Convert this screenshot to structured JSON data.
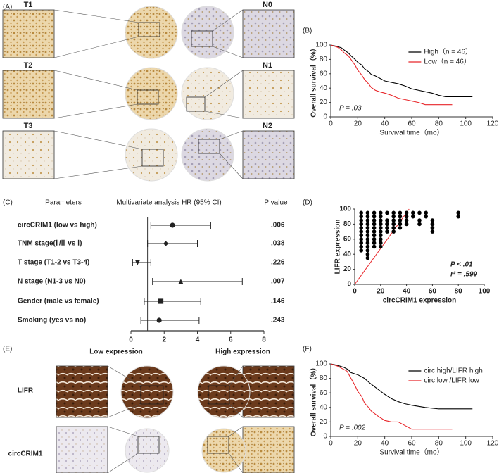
{
  "panel_labels": [
    "(A)",
    "(B)",
    "(C)",
    "(D)",
    "(E)",
    "(F)"
  ],
  "panel_a": {
    "labels": [
      "T1",
      "T2",
      "T3",
      "N0",
      "N1",
      "N2"
    ]
  },
  "panel_e": {
    "columns": [
      "Low expression",
      "High expression"
    ],
    "rows": [
      "LIFR",
      "circCRIM1"
    ]
  },
  "chart_data": [
    {
      "type": "km",
      "xlabel": "Survival time（mo）",
      "ylabel": "Overall survival（%）",
      "xlim": [
        0,
        120
      ],
      "xticks": [
        0,
        20,
        40,
        60,
        80,
        100,
        120
      ],
      "ylim": [
        0,
        100
      ],
      "yticks": [
        0,
        20,
        40,
        60,
        80,
        100
      ],
      "legend": "upper right",
      "annotation": "P = .03",
      "series": [
        {
          "name": "High（n = 46）",
          "color": "#000000",
          "x": [
            0,
            5,
            8,
            10,
            13,
            15,
            18,
            20,
            23,
            25,
            28,
            30,
            33,
            36,
            40,
            45,
            50,
            55,
            60,
            65,
            70,
            75,
            80,
            85,
            105
          ],
          "values": [
            100,
            98,
            96,
            93,
            89,
            85,
            80,
            76,
            72,
            67,
            63,
            59,
            57,
            54,
            50,
            48,
            46,
            43,
            39,
            37,
            35,
            33,
            30,
            28,
            28
          ]
        },
        {
          "name": "Low（n = 46）",
          "color": "#e8262a",
          "x": [
            0,
            5,
            8,
            10,
            13,
            15,
            18,
            20,
            23,
            25,
            28,
            30,
            33,
            36,
            40,
            45,
            50,
            55,
            60,
            65,
            70,
            90
          ],
          "values": [
            100,
            97,
            93,
            89,
            85,
            80,
            72,
            65,
            58,
            52,
            46,
            41,
            37,
            35,
            33,
            30,
            26,
            24,
            22,
            20,
            17,
            17
          ]
        }
      ]
    },
    {
      "type": "forest",
      "headers": [
        "Parameters",
        "Multivariate analysis HR (95% CI)",
        "P value"
      ],
      "categories": [
        "circCRIM1 (low vs high)",
        "TNM stage(Ⅱ/Ⅲ vs Ⅰ)",
        "T stage (T1-2 vs T3-4)",
        "N stage (N1-3 vs N0)",
        "Gender (male vs female)",
        "Smoking (yes vs no)"
      ],
      "values": [
        2.5,
        2.1,
        0.4,
        3.0,
        1.8,
        1.7
      ],
      "ci_low": [
        1.2,
        1.0,
        0.1,
        1.3,
        0.8,
        0.6
      ],
      "ci_high": [
        4.8,
        4.0,
        1.2,
        6.7,
        4.2,
        4.1
      ],
      "markers": [
        "circle",
        "diamond",
        "triangle-down",
        "triangle-up",
        "square",
        "circle"
      ],
      "p_values": [
        ".006",
        ".038",
        ".226",
        ".007",
        ".146",
        ".243"
      ],
      "ref_line": 1,
      "xlim": [
        0,
        8
      ],
      "xticks": [
        0,
        2,
        4,
        6,
        8
      ]
    },
    {
      "type": "scatter",
      "xlabel": "circCRIM1 expression",
      "ylabel": "LIFR expression",
      "xlim": [
        0,
        100
      ],
      "xticks": [
        0,
        20,
        40,
        60,
        80,
        100
      ],
      "ylim": [
        0,
        100
      ],
      "yticks": [
        0,
        20,
        40,
        60,
        80,
        100
      ],
      "annotations": [
        "P < .01",
        "r² = .599"
      ],
      "color": "#000000",
      "fit_line": {
        "color": "#e8262a",
        "x": [
          0,
          42
        ],
        "y": [
          0,
          100
        ]
      },
      "x": [
        5,
        5,
        5,
        5,
        5,
        5,
        5,
        5,
        5,
        5,
        5,
        10,
        10,
        10,
        10,
        10,
        10,
        10,
        10,
        10,
        10,
        10,
        10,
        10,
        15,
        15,
        15,
        15,
        15,
        15,
        15,
        15,
        15,
        15,
        20,
        20,
        20,
        20,
        20,
        20,
        20,
        20,
        20,
        20,
        25,
        25,
        25,
        25,
        25,
        30,
        30,
        30,
        30,
        30,
        30,
        35,
        35,
        35,
        35,
        35,
        40,
        40,
        40,
        40,
        45,
        45,
        50,
        50,
        50,
        55,
        55,
        60,
        60,
        60,
        60,
        80,
        80
      ],
      "y": [
        95,
        90,
        85,
        80,
        75,
        70,
        65,
        60,
        55,
        50,
        45,
        95,
        90,
        85,
        80,
        75,
        70,
        65,
        60,
        55,
        50,
        45,
        40,
        35,
        95,
        90,
        85,
        80,
        75,
        70,
        65,
        60,
        55,
        50,
        95,
        90,
        85,
        80,
        75,
        70,
        65,
        60,
        55,
        50,
        95,
        85,
        80,
        75,
        70,
        95,
        90,
        85,
        80,
        75,
        70,
        95,
        90,
        85,
        80,
        75,
        95,
        90,
        85,
        80,
        95,
        90,
        95,
        85,
        80,
        95,
        90,
        85,
        80,
        75,
        70,
        95,
        90
      ]
    },
    {
      "type": "km",
      "xlabel": "Survival time（mo）",
      "ylabel": "Overall survival（%）",
      "xlim": [
        0,
        120
      ],
      "xticks": [
        0,
        20,
        40,
        60,
        80,
        100,
        120
      ],
      "ylim": [
        0,
        100
      ],
      "yticks": [
        0,
        20,
        40,
        60,
        80,
        100
      ],
      "legend": "upper right",
      "annotation": "P = .002",
      "series": [
        {
          "name": "circ high/LIFR high",
          "color": "#000000",
          "x": [
            0,
            5,
            10,
            13,
            15,
            20,
            25,
            28,
            30,
            35,
            40,
            45,
            50,
            55,
            60,
            70,
            80,
            105
          ],
          "values": [
            100,
            98,
            95,
            92,
            88,
            85,
            80,
            75,
            72,
            65,
            58,
            52,
            48,
            45,
            43,
            40,
            38,
            38
          ]
        },
        {
          "name": "circ low /LIFR low",
          "color": "#e8262a",
          "x": [
            0,
            5,
            8,
            12,
            15,
            18,
            20,
            23,
            25,
            28,
            30,
            35,
            40,
            45,
            50,
            55,
            60,
            90
          ],
          "values": [
            100,
            97,
            94,
            90,
            80,
            70,
            62,
            55,
            46,
            40,
            35,
            28,
            22,
            20,
            20,
            15,
            10,
            10
          ]
        }
      ]
    }
  ]
}
